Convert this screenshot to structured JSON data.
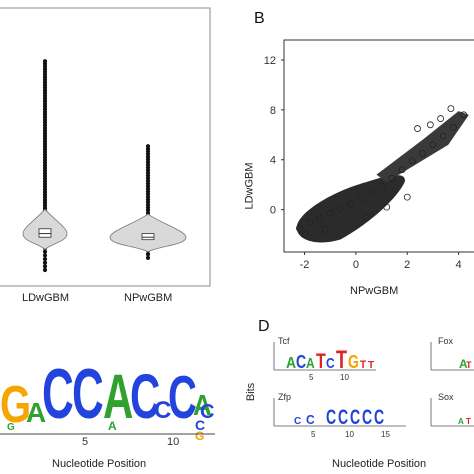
{
  "panels": {
    "B": "B",
    "D": "D"
  },
  "violin": {
    "categories": [
      "LDwGBM",
      "NPwGBM"
    ]
  },
  "scatter": {
    "xlabel": "NPwGBM",
    "ylabel": "LDwGBM",
    "xticks": [
      "-2",
      "0",
      "2",
      "4"
    ],
    "yticks": [
      "12",
      "8",
      "4",
      "0"
    ]
  },
  "logo_c": {
    "xlabel": "Nucleotide Position",
    "xticks": [
      "5",
      "10"
    ],
    "letters": [
      "G",
      "A",
      "C",
      "C",
      "A",
      "C",
      "C",
      "C",
      "A",
      "C"
    ]
  },
  "logo_d": {
    "ylabel": "Bits",
    "xlabel": "Nucleotide Position",
    "motifs": [
      {
        "name": "Tcf",
        "ticks": [
          "5",
          "10"
        ]
      },
      {
        "name": "Fox",
        "ticks": []
      },
      {
        "name": "Zfp",
        "ticks": [
          "5",
          "10",
          "15"
        ]
      },
      {
        "name": "Sox",
        "ticks": []
      }
    ]
  },
  "chart_data": [
    {
      "type": "violin",
      "categories": [
        "LDwGBM",
        "NPwGBM"
      ],
      "series": [
        {
          "name": "LDwGBM",
          "median": 1.2,
          "q1": 0.9,
          "q3": 1.6,
          "whisker_low": -1.8,
          "whisker_high": 15.5
        },
        {
          "name": "NPwGBM",
          "median": 0.9,
          "q1": 0.7,
          "q3": 1.2,
          "whisker_low": -0.8,
          "whisker_high": 8.5
        }
      ]
    },
    {
      "type": "scatter",
      "xlabel": "NPwGBM",
      "ylabel": "LDwGBM",
      "xlim": [
        -2.8,
        4.6
      ],
      "ylim": [
        -3.4,
        13.6
      ],
      "xticks": [
        -2,
        0,
        2,
        4
      ],
      "yticks": [
        0,
        4,
        8,
        12
      ],
      "x": [
        -2.2,
        -1.8,
        -1.4,
        -1.0,
        -0.6,
        -0.2,
        0.2,
        0.6,
        1.0,
        1.4,
        1.8,
        2.2,
        2.6,
        3.0,
        3.4,
        3.8,
        4.2,
        2.4,
        2.9,
        3.3,
        3.7,
        -2.0,
        -1.2,
        0.4,
        1.2,
        2.0
      ],
      "y": [
        -1.5,
        -1.0,
        -0.7,
        -0.3,
        0.1,
        0.5,
        0.9,
        1.4,
        1.9,
        2.5,
        3.2,
        3.9,
        4.5,
        5.2,
        5.9,
        6.6,
        7.6,
        6.5,
        6.8,
        7.3,
        8.1,
        -2.0,
        -1.6,
        -0.6,
        0.2,
        1.0
      ]
    }
  ]
}
